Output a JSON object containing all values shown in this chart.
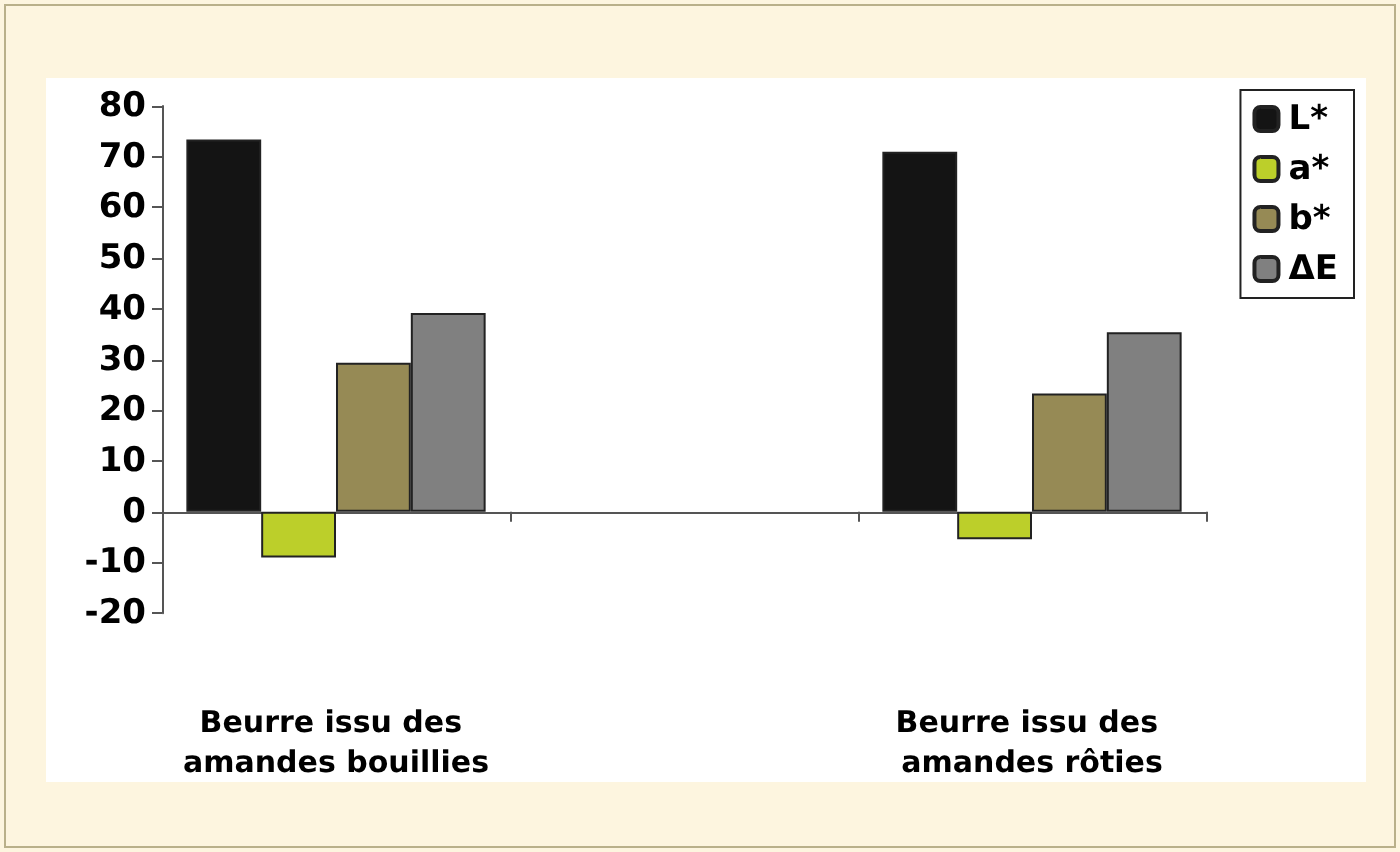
{
  "chart_data": {
    "type": "bar",
    "categories": [
      "Beurre issu des amandes bouillies",
      null,
      "Beurre issu des amandes rôties"
    ],
    "series": [
      {
        "name": "L*",
        "color": "#141414",
        "values": [
          73.4,
          null,
          71
        ]
      },
      {
        "name": "a*",
        "color": "#bccf2a",
        "values": [
          -9,
          null,
          -5.4
        ]
      },
      {
        "name": "b*",
        "color": "#968a55",
        "values": [
          29.4,
          null,
          23.3
        ]
      },
      {
        "name": "ΔE",
        "color": "#808080",
        "values": [
          39.2,
          null,
          35.4
        ]
      }
    ],
    "ylim": [
      -20,
      80
    ],
    "yticks": [
      -20,
      -10,
      0,
      10,
      20,
      30,
      40,
      50,
      60,
      70,
      80
    ],
    "legend": "top right"
  }
}
